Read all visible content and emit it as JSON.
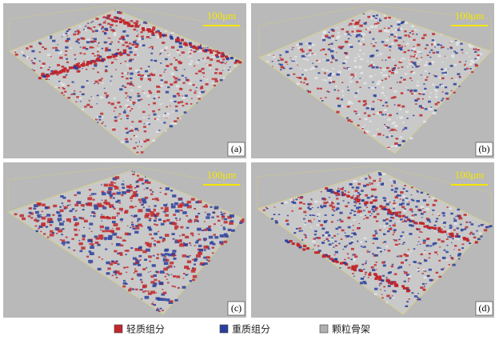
{
  "panels": [
    {
      "label": "(a)",
      "scale_bar": "100μm"
    },
    {
      "label": "(b)",
      "scale_bar": "100μm"
    },
    {
      "label": "(c)",
      "scale_bar": "100μm"
    },
    {
      "label": "(d)",
      "scale_bar": "100μm"
    }
  ],
  "legend": [
    {
      "label": "轻质组分",
      "color": "#c0282d"
    },
    {
      "label": "重质组分",
      "color": "#2a3f9c"
    },
    {
      "label": "颗粒骨架",
      "color": "#b0b0b0"
    }
  ]
}
